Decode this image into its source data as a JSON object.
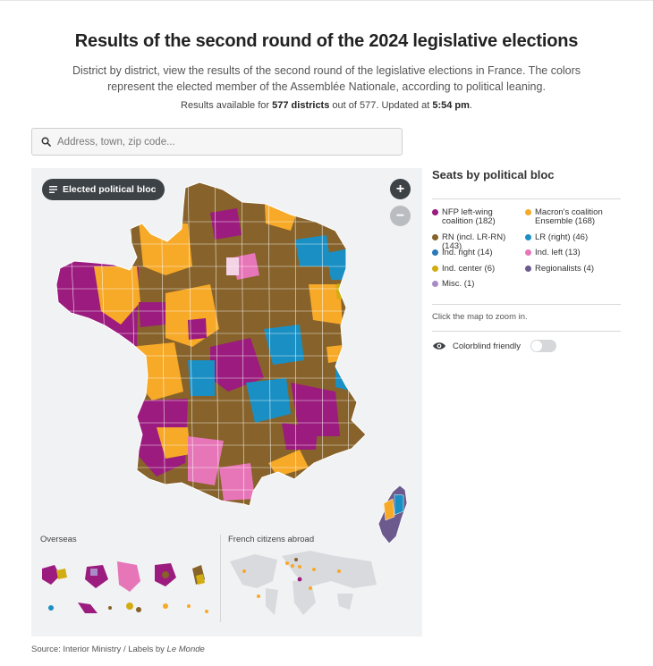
{
  "header": {
    "title": "Results of the second round of the 2024 legislative elections",
    "subtitle": "District by district, view the results of the second round of the legislative elections in France. The colors represent the elected member of the Assemblée Nationale, according to political leaning.",
    "results_prefix": "Results available for",
    "results_count": "577 districts",
    "results_mid": "out of 577. Updated at",
    "results_time": "5:54 pm",
    "results_suffix": "."
  },
  "search": {
    "placeholder": "Address, town, zip code..."
  },
  "map": {
    "mode_label": "Elected political bloc",
    "zoom_in": "+",
    "zoom_out": "−",
    "overseas_label": "Overseas",
    "abroad_label": "French citizens abroad"
  },
  "legend": {
    "title": "Seats by political bloc",
    "items": [
      {
        "label": "NFP left-wing coalition (182)",
        "color": "#9b1b7e"
      },
      {
        "label": "Macron's coalition Ensemble (168)",
        "color": "#f7a928"
      },
      {
        "label": "RN (incl. LR-RN) (143)",
        "color": "#87622a"
      },
      {
        "label": "LR (right) (46)",
        "color": "#1a8fc4"
      },
      {
        "label": "Ind. right (14)",
        "color": "#2a79b8"
      },
      {
        "label": "Ind. left (13)",
        "color": "#e676b8"
      },
      {
        "label": "Ind. center (6)",
        "color": "#d1ad12"
      },
      {
        "label": "Regionalists (4)",
        "color": "#6c5a8e"
      },
      {
        "label": "Misc. (1)",
        "color": "#a98cc7"
      }
    ],
    "hint": "Click the map to zoom in.",
    "colorblind_label": "Colorblind friendly",
    "colorblind_on": false
  },
  "source": {
    "prefix": "Source: Interior Ministry / Labels by",
    "outlet": "Le Monde"
  }
}
